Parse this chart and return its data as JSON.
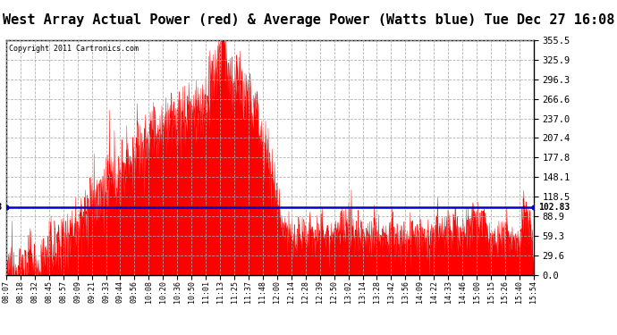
{
  "title": "West Array Actual Power (red) & Average Power (Watts blue) Tue Dec 27 16:08",
  "copyright": "Copyright 2011 Cartronics.com",
  "average_power": 102.83,
  "y_max": 355.5,
  "y_min": 0.0,
  "y_ticks": [
    0.0,
    29.6,
    59.3,
    88.9,
    118.5,
    148.1,
    177.8,
    207.4,
    237.0,
    266.6,
    296.3,
    325.9,
    355.5
  ],
  "x_labels": [
    "08:07",
    "08:18",
    "08:32",
    "08:45",
    "08:57",
    "09:09",
    "09:21",
    "09:33",
    "09:44",
    "09:56",
    "10:08",
    "10:20",
    "10:36",
    "10:50",
    "11:01",
    "11:13",
    "11:25",
    "11:37",
    "11:48",
    "12:00",
    "12:14",
    "12:28",
    "12:39",
    "12:50",
    "13:02",
    "13:14",
    "13:28",
    "13:42",
    "13:56",
    "14:09",
    "14:22",
    "14:33",
    "14:46",
    "15:00",
    "15:15",
    "15:26",
    "15:40",
    "15:54"
  ],
  "background_color": "#ffffff",
  "grid_color": "#aaaaaa",
  "fill_color": "#ff0000",
  "avg_line_color": "#0000cc",
  "title_fontsize": 11,
  "title_bg": "#c8c8c8"
}
